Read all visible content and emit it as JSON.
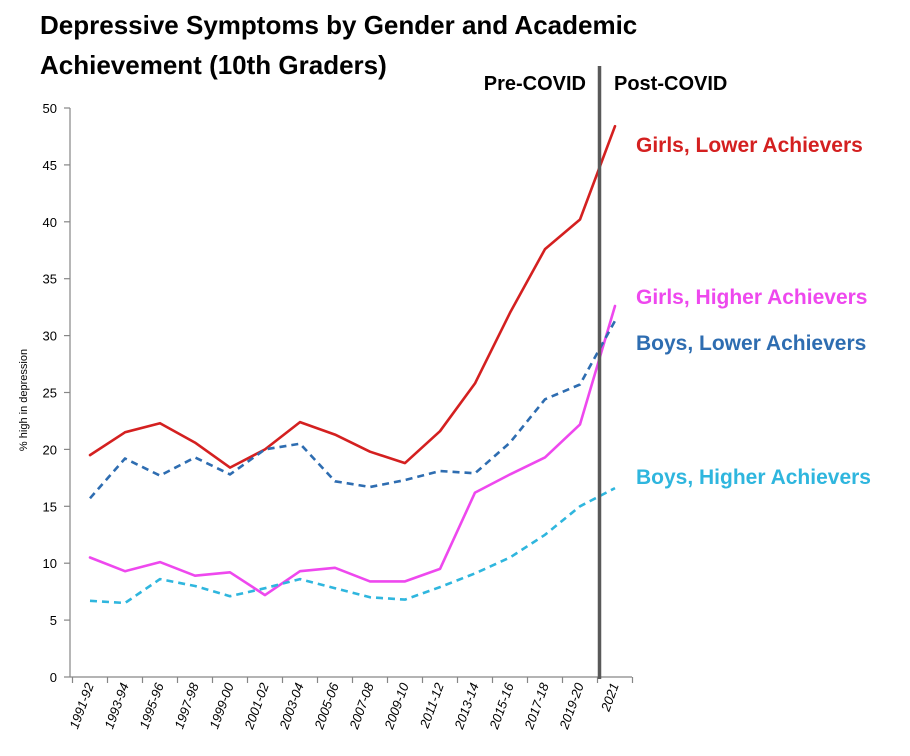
{
  "chart_data": {
    "type": "line",
    "title_line1": "Depressive Symptoms by Gender and Academic",
    "title_line2": "Achievement (10th Graders)",
    "ylabel": "% high in depression",
    "xlabel": "",
    "ylim": [
      0,
      50
    ],
    "yticks": [
      "0",
      "5",
      "10",
      "15",
      "20",
      "25",
      "30",
      "35",
      "40",
      "45",
      "50"
    ],
    "categories": [
      "1991-92",
      "1993-94",
      "1995-96",
      "1997-98",
      "1999-00",
      "2001-02",
      "2003-04",
      "2005-06",
      "2007-08",
      "2009-10",
      "2011-12",
      "2013-14",
      "2015-16",
      "2017-18",
      "2019-20",
      "2021"
    ],
    "grid": false,
    "divider": {
      "after_category": "2019-20",
      "pre_label": "Pre-COVID",
      "post_label": "Post-COVID",
      "color": "#595959"
    },
    "series": [
      {
        "name": "Girls, Lower Achievers",
        "color": "#d42020",
        "dash": false,
        "values": [
          19.5,
          21.5,
          22.3,
          20.6,
          18.4,
          20.0,
          22.4,
          21.3,
          19.8,
          18.8,
          21.6,
          25.8,
          32.0,
          37.6,
          40.2,
          48.4
        ]
      },
      {
        "name": "Girls, Higher Achievers",
        "color": "#ee48ee",
        "dash": false,
        "values": [
          10.5,
          9.3,
          10.1,
          8.9,
          9.2,
          7.2,
          9.3,
          9.6,
          8.4,
          8.4,
          9.5,
          16.2,
          17.8,
          19.3,
          22.2,
          32.6
        ]
      },
      {
        "name": "Boys, Lower Achievers",
        "color": "#2e6db1",
        "dash": true,
        "values": [
          15.7,
          19.2,
          17.7,
          19.3,
          17.8,
          20.0,
          20.5,
          17.2,
          16.7,
          17.3,
          18.1,
          17.9,
          20.6,
          24.4,
          25.7,
          31.3
        ]
      },
      {
        "name": "Boys, Higher Achievers",
        "color": "#2fb6de",
        "dash": true,
        "values": [
          6.7,
          6.5,
          8.6,
          8.0,
          7.1,
          7.8,
          8.6,
          7.8,
          7.0,
          6.8,
          7.9,
          9.1,
          10.5,
          12.5,
          15.0,
          16.6
        ]
      }
    ]
  }
}
